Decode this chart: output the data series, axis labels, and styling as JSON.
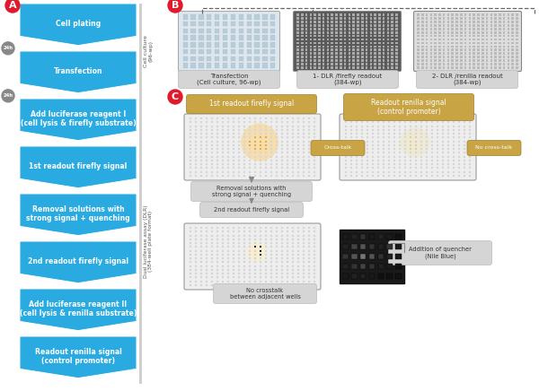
{
  "steps": [
    "Cell plating",
    "Transfection",
    "Add luciferase reagent I\n(cell lysis & firefly substrate)",
    "1st readout firefly signal",
    "Removal solutions with\nstrong signal + quenching",
    "2nd readout firefly signal",
    "Add luciferase reagent II\n(cell lysis & renilla substrate)",
    "Readout renilla signal\n(control promoter)"
  ],
  "step_color": "#29aae1",
  "label_color": "#e0192d",
  "gold_color": "#c8a444",
  "bg_color": "#ffffff",
  "sidebar_top": "Cell culture\n(96-wp)",
  "sidebar_bot": "Dual luciferase assay (DLR)\n(384-well plate format)",
  "B_labels": [
    "Transfection\n(Cell culture, 96-wp)",
    "1- DLR /firefly readout\n(384-wp)",
    "2- DLR /renilla readout\n(384-wp)"
  ],
  "C_left_label": "1st readout firefly signal",
  "C_right_label": "Readout renilla signal\n(control promoter)",
  "crosstalk_label": "Cross-talk",
  "no_crosstalk_label": "No cross-talk",
  "removal_label": "Removal solutions with\nstrong signal + quenching",
  "readout2_label": "2nd readout firefly signal",
  "quencher_label": "Addition of quencher\n(Nile Blue)",
  "no_adj_label": "No crosstalk\nbetween adjacent wells"
}
